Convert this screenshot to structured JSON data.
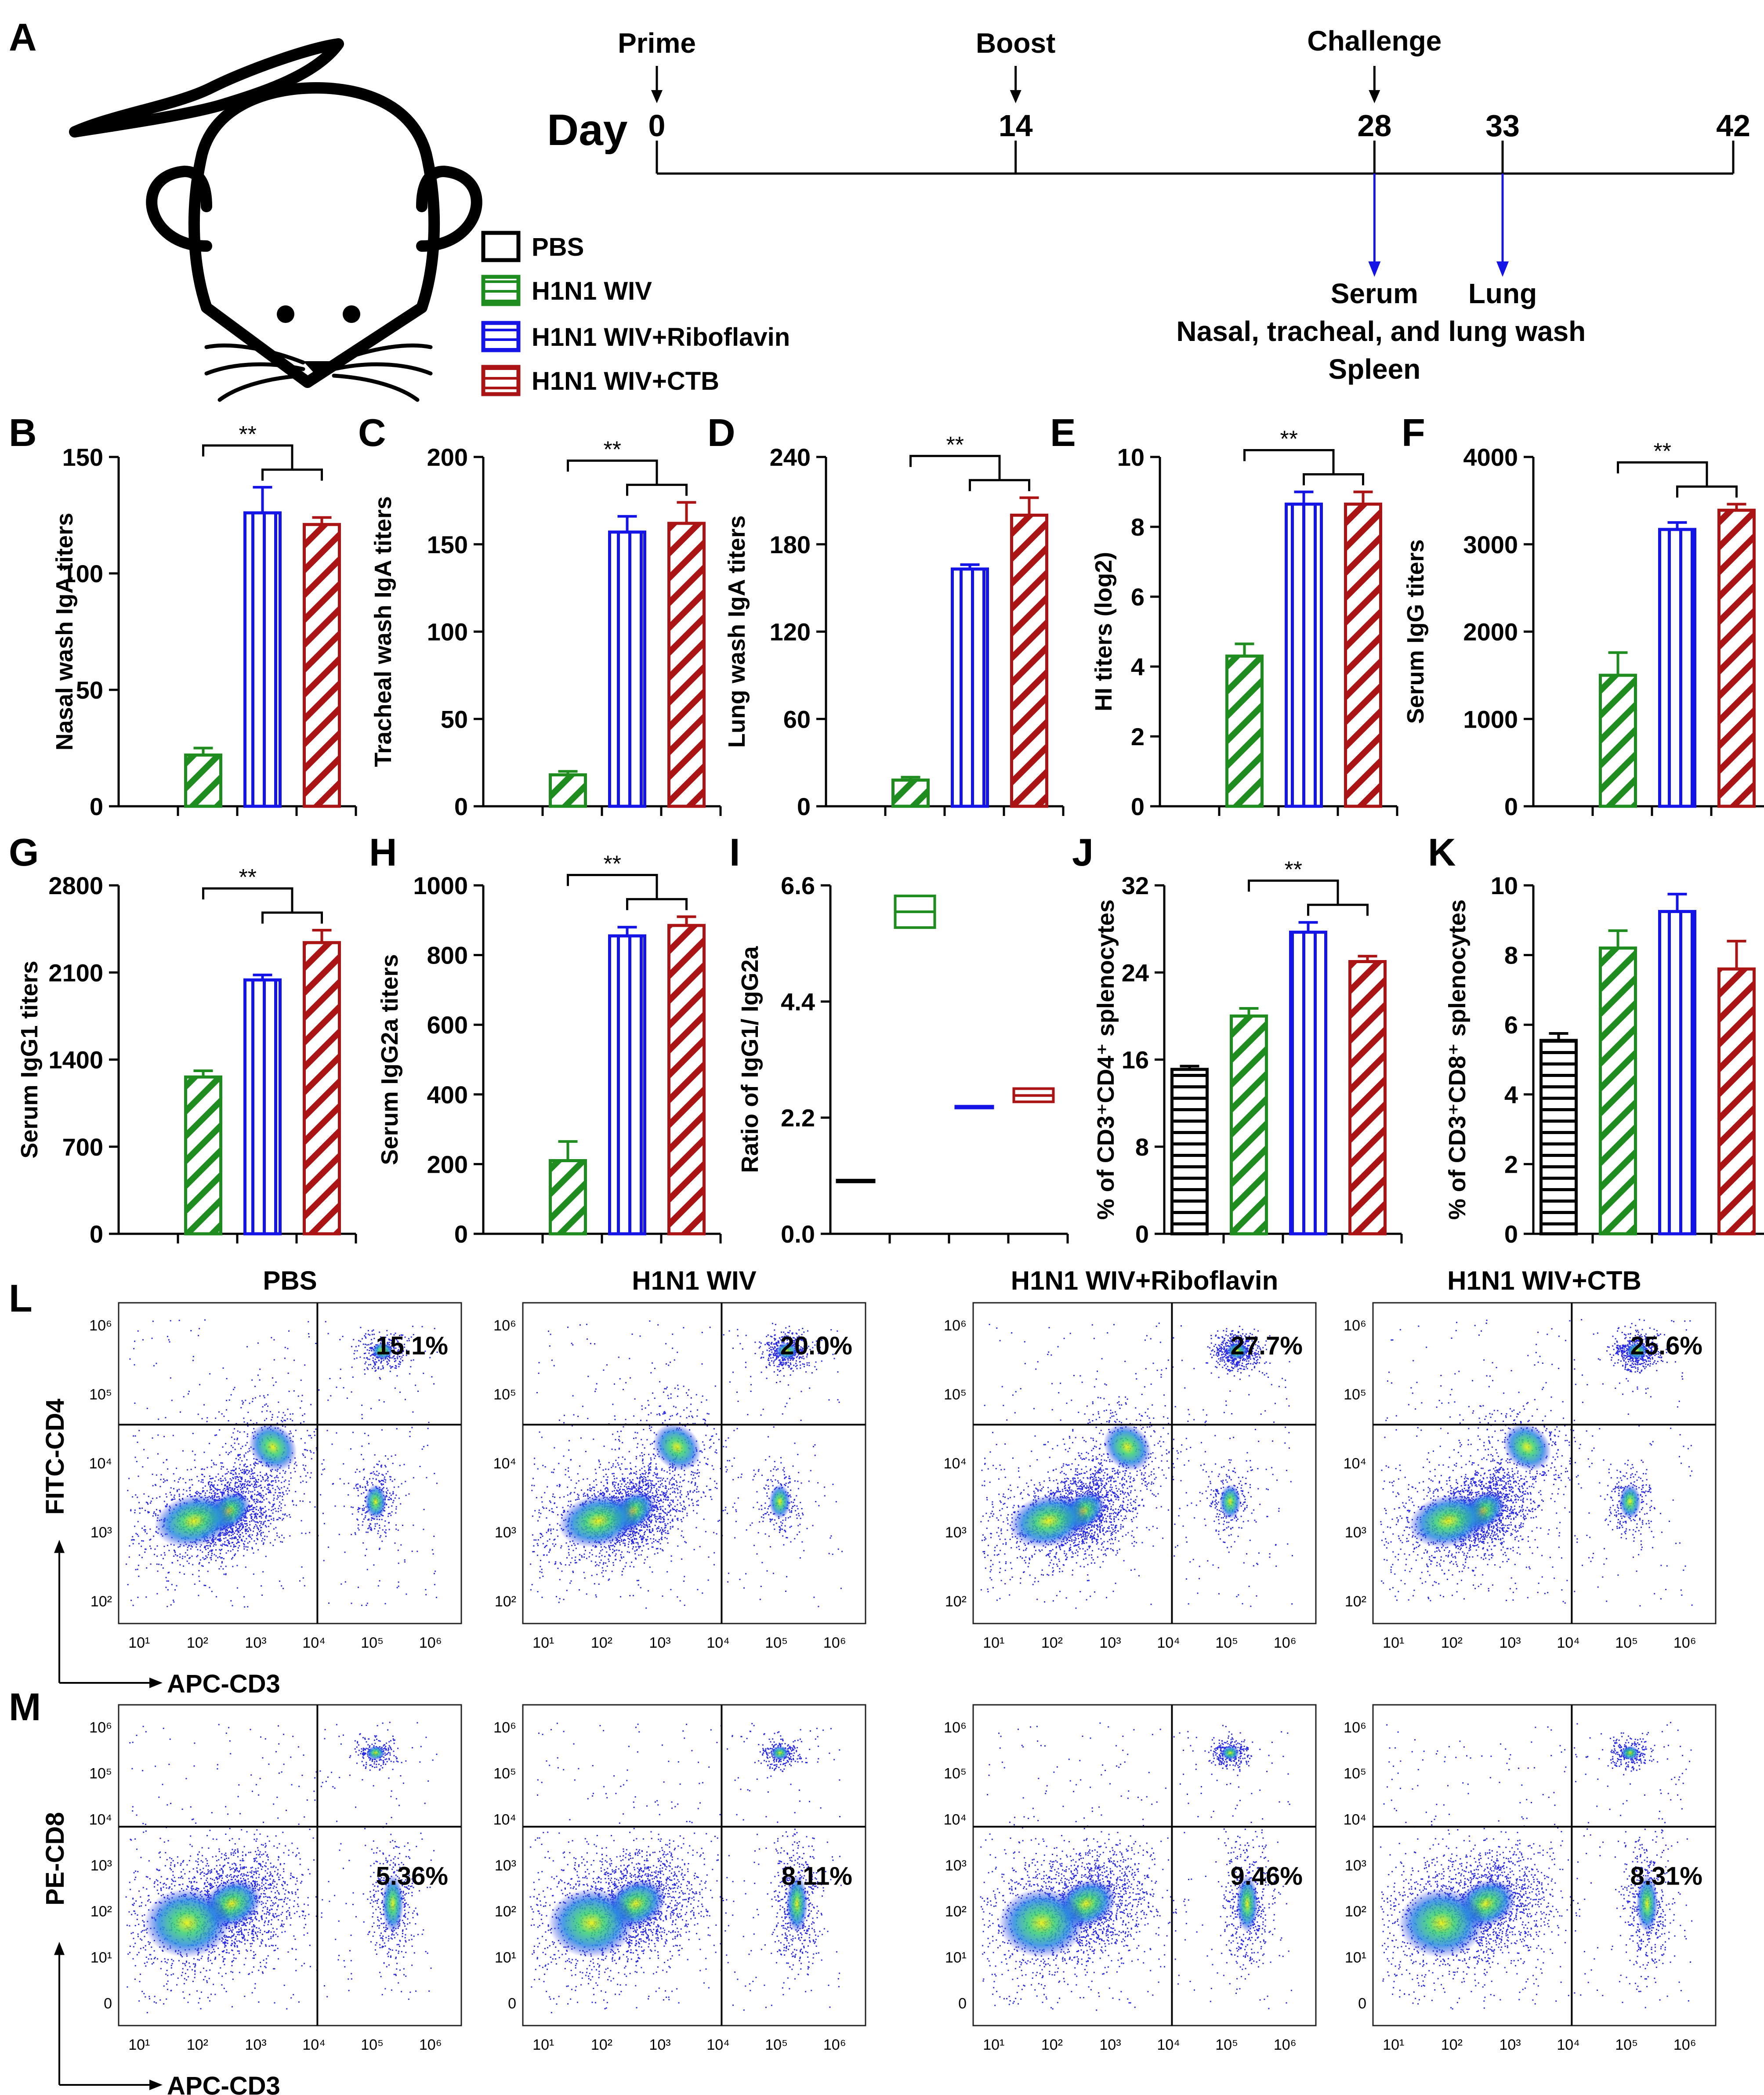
{
  "panel_letters": {
    "A": "A",
    "B": "B",
    "C": "C",
    "D": "D",
    "E": "E",
    "F": "F",
    "G": "G",
    "H": "H",
    "I": "I",
    "J": "J",
    "K": "K",
    "L": "L",
    "M": "M"
  },
  "timeline": {
    "day_label": "Day",
    "ticks": [
      "0",
      "14",
      "28",
      "33",
      "42"
    ],
    "events": [
      "Prime",
      "Boost",
      "Challenge"
    ],
    "sample_28": [
      "Serum",
      "Nasal, tracheal, and lung wash",
      "Spleen"
    ],
    "sample_33": "Lung"
  },
  "legend": [
    {
      "label": "PBS",
      "color": "#000000",
      "pattern": "none"
    },
    {
      "label": "H1N1 WIV",
      "color": "#1e8c1e",
      "pattern": "horizontal"
    },
    {
      "label": "H1N1 WIV+Riboflavin",
      "color": "#1414e6",
      "pattern": "horizontal"
    },
    {
      "label": "H1N1 WIV+CTB",
      "color": "#aa1414",
      "pattern": "horizontal"
    }
  ],
  "groups": [
    "PBS",
    "H1N1 WIV",
    "H1N1 WIV+Riboflavin",
    "H1N1 WIV+CTB"
  ],
  "colors": [
    "#000000",
    "#1e8c1e",
    "#1414e6",
    "#aa1414"
  ],
  "significance": "**",
  "chart_data": [
    {
      "id": "B",
      "type": "bar",
      "ylabel": "Nasal wash IgA titers",
      "ylim": [
        0,
        150
      ],
      "ticks": [
        0,
        50,
        100,
        150
      ],
      "values": [
        0,
        22,
        126,
        121
      ],
      "errors": [
        0,
        3,
        11,
        3
      ],
      "sig": true
    },
    {
      "id": "C",
      "type": "bar",
      "ylabel": "Tracheal wash IgA titers",
      "ylim": [
        0,
        200
      ],
      "ticks": [
        0,
        50,
        100,
        150,
        200
      ],
      "values": [
        0,
        18,
        157,
        162
      ],
      "errors": [
        0,
        2,
        9,
        12
      ],
      "sig": true
    },
    {
      "id": "D",
      "type": "bar",
      "ylabel": "Lung wash IgA titers",
      "ylim": [
        0,
        240
      ],
      "ticks": [
        0,
        60,
        120,
        180,
        240
      ],
      "values": [
        0,
        18,
        163,
        200
      ],
      "errors": [
        0,
        2,
        3,
        12
      ],
      "sig": true
    },
    {
      "id": "E",
      "type": "bar",
      "ylabel": "HI titers (log2)",
      "ylim": [
        0,
        10
      ],
      "ticks": [
        0,
        2,
        4,
        6,
        8,
        10
      ],
      "values": [
        0,
        4.3,
        8.65,
        8.65
      ],
      "errors": [
        0,
        0.35,
        0.35,
        0.35
      ],
      "sig": true
    },
    {
      "id": "F",
      "type": "bar",
      "ylabel": "Serum IgG titers",
      "ylim": [
        0,
        4000
      ],
      "ticks": [
        0,
        1000,
        2000,
        3000,
        4000
      ],
      "values": [
        0,
        1500,
        3170,
        3390
      ],
      "errors": [
        0,
        260,
        80,
        70
      ],
      "sig": true
    },
    {
      "id": "G",
      "type": "bar",
      "ylabel": "Serum IgG1 titers",
      "ylim": [
        0,
        2800
      ],
      "ticks": [
        0,
        700,
        1400,
        2100,
        2800
      ],
      "values": [
        0,
        1260,
        2040,
        2340
      ],
      "errors": [
        0,
        50,
        40,
        100
      ],
      "sig": true
    },
    {
      "id": "H",
      "type": "bar",
      "ylabel": "Serum IgG2a titers",
      "ylim": [
        0,
        1000
      ],
      "ticks": [
        0,
        200,
        400,
        600,
        800,
        1000
      ],
      "values": [
        0,
        210,
        855,
        885
      ],
      "errors": [
        0,
        55,
        25,
        25
      ],
      "sig": true
    },
    {
      "id": "I",
      "type": "box",
      "ylabel": "Ratio of IgG1/ IgG2a",
      "ylim": [
        0,
        6.6
      ],
      "ticks": [
        0.0,
        2.2,
        4.4,
        6.6
      ],
      "tick_labels": [
        "0.0",
        "2.2",
        "4.4",
        "6.6"
      ],
      "low": [
        1.0,
        5.8,
        2.38,
        2.5
      ],
      "mid": [
        1.0,
        6.1,
        2.4,
        2.62
      ],
      "high": [
        1.0,
        6.4,
        2.42,
        2.75
      ]
    },
    {
      "id": "J",
      "type": "bar",
      "ylabel": "% of CD3⁺CD4⁺ splenocytes",
      "ylim": [
        0,
        32
      ],
      "ticks": [
        0,
        8,
        16,
        24,
        32
      ],
      "values": [
        15.1,
        20.0,
        27.7,
        25.0
      ],
      "errors": [
        0.3,
        0.7,
        0.9,
        0.5
      ],
      "sig": true
    },
    {
      "id": "K",
      "type": "bar",
      "ylabel": "% of CD3⁺CD8⁺ splenocytes",
      "ylim": [
        0,
        10
      ],
      "ticks": [
        0,
        2,
        4,
        6,
        8,
        10
      ],
      "values": [
        5.55,
        8.2,
        9.25,
        7.6
      ],
      "errors": [
        0.2,
        0.5,
        0.5,
        0.8
      ],
      "sig": false
    }
  ],
  "flow": {
    "titles": [
      "PBS",
      "H1N1 WIV",
      "H1N1 WIV+Riboflavin",
      "H1N1 WIV+CTB"
    ],
    "L_percents": [
      "15.1%",
      "20.0%",
      "27.7%",
      "25.6%"
    ],
    "M_percents": [
      "5.36%",
      "8.11%",
      "9.46%",
      "8.31%"
    ],
    "L_ylabel": "FITC-CD4",
    "M_ylabel": "PE-CD8",
    "xlabel": "APC-CD3",
    "y_ticks_L": [
      "10²",
      "10³",
      "10⁴",
      "10⁵",
      "10⁶"
    ],
    "y_ticks_M": [
      "0",
      "10¹",
      "10²",
      "10³",
      "10⁴",
      "10⁵",
      "10⁶"
    ],
    "x_ticks": [
      "10¹",
      "10²",
      "10³",
      "10⁴",
      "10⁵",
      "10⁶"
    ]
  }
}
